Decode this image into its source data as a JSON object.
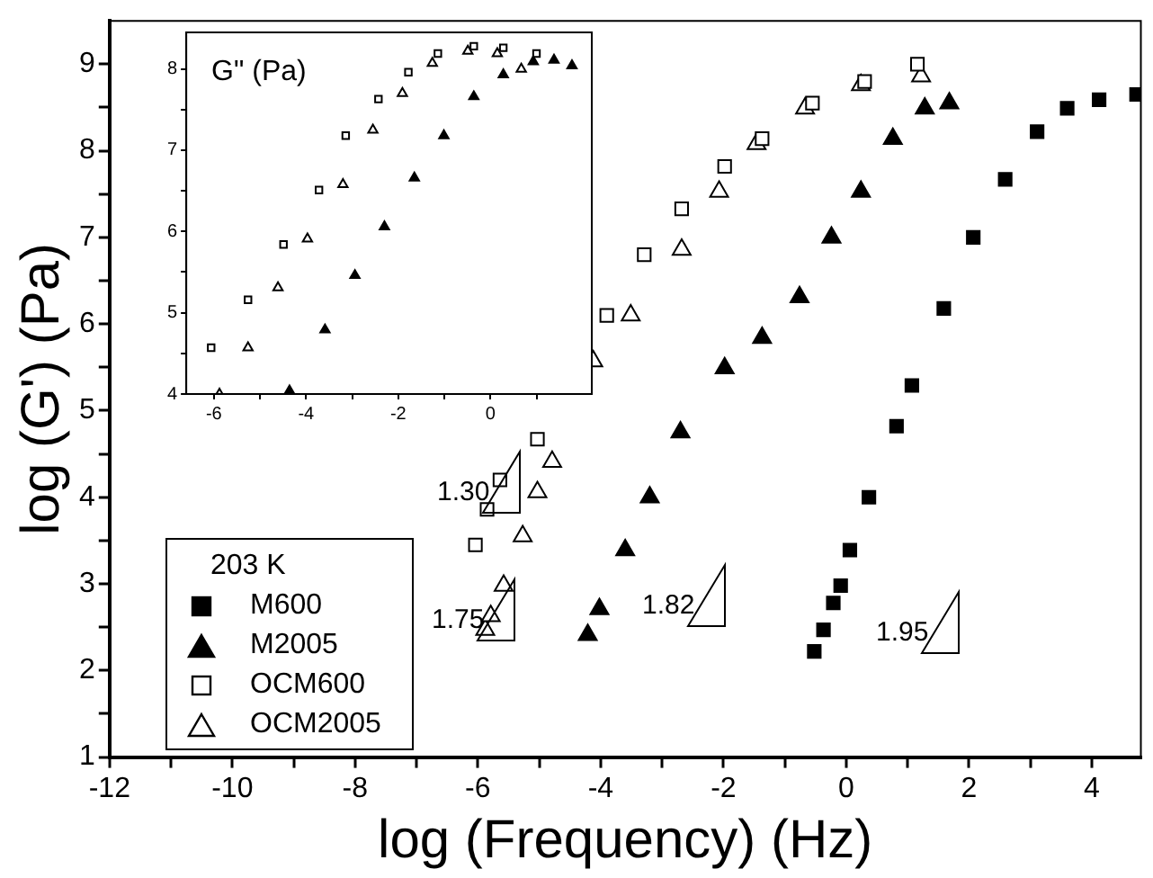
{
  "chart_data": [
    {
      "type": "scatter",
      "xlabel": "log (Frequency) (Hz)",
      "ylabel": "log (G') (Pa)",
      "legend_title": "203 K",
      "legend": "bottom left",
      "grid": false,
      "xlim": [
        -12,
        4.8
      ],
      "ylim": [
        1,
        9.5
      ],
      "xticks": [
        -12,
        {
          "value": -11,
          "label": null
        },
        -10,
        {
          "value": -9,
          "label": null
        },
        -8,
        {
          "value": -7,
          "label": null
        },
        -6,
        {
          "value": -5,
          "label": null
        },
        -4,
        {
          "value": -3,
          "label": null
        },
        -2,
        {
          "value": -1,
          "label": null
        },
        0,
        {
          "value": 1,
          "label": null
        },
        2,
        {
          "value": 3,
          "label": null
        },
        4
      ],
      "yticks": [
        1,
        {
          "value": 1.5,
          "label": null
        },
        2,
        {
          "value": 2.5,
          "label": null
        },
        3,
        {
          "value": 3.5,
          "label": null
        },
        4,
        {
          "value": 4.5,
          "label": null
        },
        5,
        {
          "value": 5.5,
          "label": null
        },
        6,
        {
          "value": 6.5,
          "label": null
        },
        7,
        {
          "value": 7.5,
          "label": null
        },
        8,
        {
          "value": 8.5,
          "label": null
        },
        9
      ],
      "annotations": [
        "1.30",
        "1.75",
        "1.82",
        "1.95"
      ],
      "series": [
        {
          "name": "M600",
          "color": "#000000",
          "marker": "square",
          "x": [
            -0.52,
            -0.37,
            -0.21,
            -0.09,
            0.06,
            0.37,
            0.82,
            1.07,
            1.59,
            2.07,
            2.59,
            3.11,
            3.6,
            4.12,
            4.73
          ],
          "values": [
            2.22,
            2.47,
            2.78,
            2.98,
            3.39,
            4.0,
            4.82,
            5.29,
            6.18,
            7.0,
            7.67,
            8.22,
            8.49,
            8.59,
            8.65
          ]
        },
        {
          "name": "M2005",
          "color": "#000000",
          "marker": "triangle",
          "x": [
            -4.21,
            -4.02,
            -3.6,
            -3.2,
            -2.7,
            -1.98,
            -1.37,
            -0.76,
            -0.24,
            0.24,
            0.76,
            1.28,
            1.68
          ],
          "values": [
            2.41,
            2.71,
            3.39,
            4.0,
            4.75,
            5.49,
            5.84,
            6.31,
            7.0,
            7.53,
            8.14,
            8.49,
            8.55
          ]
        },
        {
          "name": "OCM600",
          "color": "#ffffff",
          "marker": "square",
          "x": [
            -6.04,
            -5.85,
            -5.64,
            -5.03,
            -3.9,
            -3.29,
            -2.68,
            -1.98,
            -1.37,
            -0.55,
            0.3,
            1.16
          ],
          "values": [
            3.45,
            3.86,
            4.2,
            4.67,
            6.1,
            6.8,
            7.33,
            7.82,
            8.14,
            8.55,
            8.8,
            9.0
          ]
        },
        {
          "name": "OCM2005",
          "color": "#ffffff",
          "marker": "triangle",
          "x": [
            -5.88,
            -5.79,
            -5.58,
            -5.27,
            -5.03,
            -4.79,
            -4.12,
            -3.51,
            -2.68,
            -2.07,
            -1.46,
            -0.67,
            0.24,
            1.22
          ],
          "values": [
            2.47,
            2.63,
            2.98,
            3.55,
            4.06,
            4.41,
            5.57,
            6.1,
            6.86,
            7.53,
            8.08,
            8.49,
            8.76,
            8.86
          ]
        }
      ]
    },
    {
      "type": "scatter",
      "title": "G\" (Pa)",
      "grid": false,
      "xlim": [
        -6.6,
        2.2
      ],
      "ylim": [
        4,
        8.45
      ],
      "xticks": [
        -6,
        {
          "value": -5,
          "label": null
        },
        -4,
        {
          "value": -3,
          "label": null
        },
        -2,
        {
          "value": -1,
          "label": null
        },
        0,
        {
          "value": 1,
          "label": null
        }
      ],
      "yticks": [
        4,
        {
          "value": 4.5,
          "label": null
        },
        5,
        {
          "value": 5.5,
          "label": null
        },
        6,
        {
          "value": 6.5,
          "label": null
        },
        7,
        {
          "value": 7.5,
          "label": null
        },
        8
      ],
      "series": [
        {
          "color": "#000000",
          "marker": "triangle",
          "x": [
            -4.36,
            -3.59,
            -2.94,
            -2.3,
            -1.65,
            -1.01,
            -0.36,
            0.28,
            0.93,
            1.38,
            1.77
          ],
          "values": [
            4.04,
            4.79,
            5.46,
            6.06,
            6.66,
            7.18,
            7.66,
            7.93,
            8.09,
            8.11,
            8.04
          ]
        },
        {
          "color": "#ffffff",
          "marker": "square",
          "x": [
            -6.06,
            -5.26,
            -4.49,
            -3.72,
            -3.14,
            -2.43,
            -1.78,
            -1.14,
            -0.36,
            0.28,
            1.0
          ],
          "values": [
            4.57,
            5.16,
            5.84,
            6.51,
            7.18,
            7.63,
            7.96,
            8.19,
            8.28,
            8.26,
            8.19
          ]
        },
        {
          "color": "#ffffff",
          "marker": "triangle",
          "x": [
            -5.88,
            -5.26,
            -4.61,
            -3.97,
            -3.2,
            -2.55,
            -1.91,
            -1.26,
            -0.49,
            0.15,
            0.67
          ],
          "values": [
            4.0,
            4.57,
            5.31,
            5.91,
            6.58,
            7.25,
            7.7,
            8.07,
            8.22,
            8.19,
            8.0
          ]
        }
      ]
    }
  ]
}
